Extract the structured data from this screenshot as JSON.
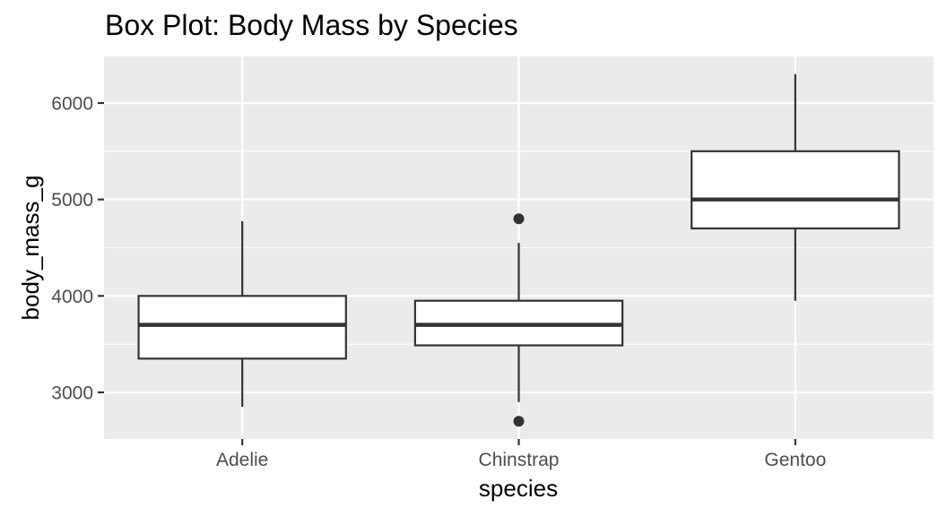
{
  "chart_data": {
    "type": "box",
    "title": "Box Plot: Body Mass by Species",
    "xlabel": "species",
    "ylabel": "body_mass_g",
    "categories": [
      "Adelie",
      "Chinstrap",
      "Gentoo"
    ],
    "ylim": [
      2517,
      6483
    ],
    "yticks": [
      3000,
      4000,
      5000,
      6000
    ],
    "ytick_labels": [
      "3000",
      "4000",
      "5000",
      "6000"
    ],
    "grid": true,
    "series": [
      {
        "name": "Adelie",
        "whisker_low": 2850,
        "q1": 3350,
        "median": 3700,
        "q3": 4000,
        "whisker_high": 4775,
        "outliers": []
      },
      {
        "name": "Chinstrap",
        "whisker_low": 2900,
        "q1": 3487.5,
        "median": 3700,
        "q3": 3950,
        "whisker_high": 4550,
        "outliers": [
          2700,
          4800
        ]
      },
      {
        "name": "Gentoo",
        "whisker_low": 3950,
        "q1": 4700,
        "median": 5000,
        "q3": 5500,
        "whisker_high": 6300,
        "outliers": []
      }
    ],
    "colors": {
      "panel": "#ebebeb",
      "grid": "#ffffff",
      "box_fill": "#ffffff",
      "box_stroke": "#333333",
      "tick": "#333333"
    }
  }
}
